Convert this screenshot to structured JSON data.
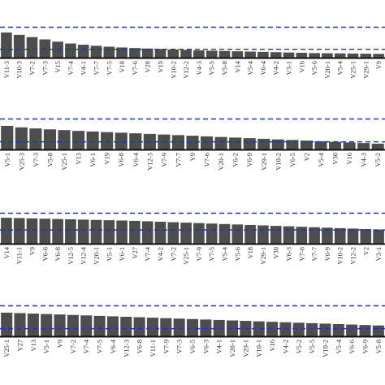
{
  "colors": {
    "bar": "#4d4d4d",
    "baseline": "#111111",
    "threshold": "#2233bb",
    "label": "#333333"
  },
  "chart_data": [
    {
      "type": "bar",
      "categories": [
        "V11-3",
        "V10-3",
        "V7-2",
        "V7-3",
        "V15",
        "V7-4",
        "V4-1",
        "V7-7",
        "V7-5",
        "V18",
        "V7-6",
        "V28",
        "V19",
        "V10-2",
        "V12-2",
        "V4-3",
        "V5-5",
        "V5-8",
        "V14",
        "V5-4",
        "V6-4",
        "V4-2",
        "V3-1",
        "V16",
        "V5-6",
        "V20-1",
        "V5-4",
        "V25-1",
        "V29-1",
        "V9"
      ],
      "values": [
        1.65,
        1.5,
        1.35,
        1.2,
        1.05,
        0.93,
        0.85,
        0.78,
        0.72,
        0.67,
        0.63,
        0.6,
        0.57,
        0.54,
        0.51,
        0.48,
        0.46,
        0.44,
        0.42,
        0.4,
        0.38,
        0.36,
        0.34,
        0.32,
        0.3,
        0.29,
        0.28,
        0.27,
        0.26,
        0.25
      ],
      "ylim": [
        0,
        2.4
      ],
      "thresholds": [
        2.0,
        0.55
      ]
    },
    {
      "type": "bar",
      "categories": [
        "V5-1",
        "V25-3",
        "V7-3",
        "V5-8",
        "V25-1",
        "V13",
        "V6-1",
        "V19",
        "V6-8",
        "V6-4",
        "V12-3",
        "V7-9",
        "V7-7",
        "V9",
        "V7-6",
        "V20-1",
        "V6-2",
        "V6-9",
        "V29-1",
        "V10-2",
        "V6-5",
        "V2",
        "V5-4",
        "V30",
        "V16",
        "V4-3",
        "V5-2"
      ],
      "values": [
        1.55,
        1.45,
        1.38,
        1.32,
        1.27,
        1.22,
        1.18,
        1.14,
        1.1,
        1.06,
        1.02,
        0.98,
        0.94,
        0.9,
        0.86,
        0.82,
        0.78,
        0.74,
        0.7,
        0.66,
        0.62,
        0.58,
        0.54,
        0.5,
        0.46,
        0.42,
        0.38
      ],
      "ylim": [
        0,
        2.4
      ],
      "thresholds": [
        2.0,
        0.5
      ]
    },
    {
      "type": "bar",
      "categories": [
        "V14",
        "V11-1",
        "V9",
        "V6-6",
        "V6-8",
        "V12-5",
        "V12-4",
        "V20-1",
        "V5-1",
        "V6-1",
        "V27",
        "V7-4",
        "V4-2",
        "V7-2",
        "V25-1",
        "V7-9",
        "V7-5",
        "V5-4",
        "V5-6",
        "V18",
        "V29-1",
        "V30",
        "V6-3",
        "V7-6",
        "V7-7",
        "V6-9",
        "V10-2",
        "V12-2",
        "V2",
        "V3-1"
      ],
      "values": [
        1.7,
        1.68,
        1.66,
        1.64,
        1.62,
        1.6,
        1.58,
        1.56,
        1.54,
        1.52,
        1.5,
        1.47,
        1.44,
        1.41,
        1.38,
        1.35,
        1.32,
        1.29,
        1.26,
        1.23,
        1.2,
        1.17,
        1.14,
        1.11,
        1.08,
        1.05,
        1.02,
        0.99,
        0.96,
        0.93
      ],
      "ylim": [
        0,
        2.4
      ],
      "thresholds": [
        2.0,
        0.9
      ]
    },
    {
      "type": "bar",
      "categories": [
        "V25-1",
        "V27",
        "V13",
        "V5-1",
        "V9",
        "V7-2",
        "V7-4",
        "V7-5",
        "V6-4",
        "V12-3",
        "V6-8",
        "V11-1",
        "V7-9",
        "V7-3",
        "V6-5",
        "V6-3",
        "V4-1",
        "V20-1",
        "V29-1",
        "V10-1",
        "V16",
        "V4-2",
        "V5-2",
        "V5-5",
        "V10-2",
        "V5-4",
        "V6-6",
        "V6-9",
        "V5-8"
      ],
      "values": [
        1.55,
        1.52,
        1.49,
        1.46,
        1.43,
        1.4,
        1.37,
        1.34,
        1.31,
        1.28,
        1.25,
        1.22,
        1.19,
        1.16,
        1.13,
        1.1,
        1.07,
        1.04,
        1.01,
        0.98,
        0.95,
        0.92,
        0.89,
        0.86,
        0.83,
        0.8,
        0.77,
        0.74,
        0.71
      ],
      "ylim": [
        0,
        2.4
      ],
      "thresholds": [
        2.0,
        0.5
      ]
    }
  ]
}
